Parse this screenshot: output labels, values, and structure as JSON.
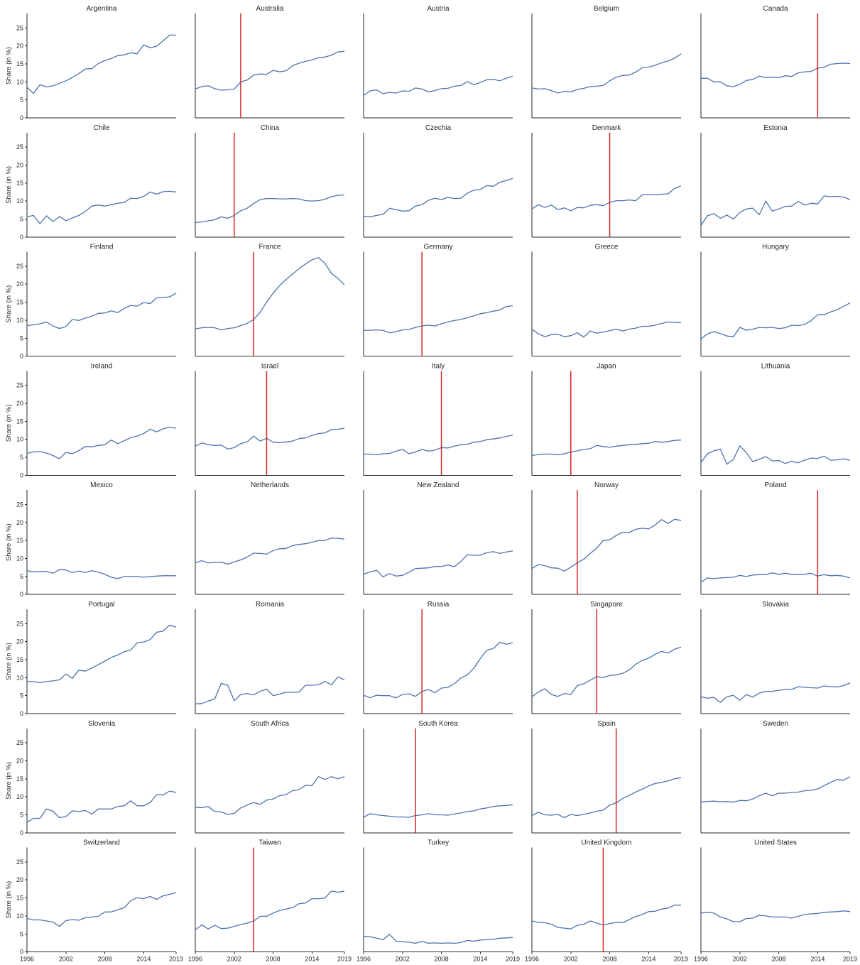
{
  "chart_data": {
    "type": "line",
    "layout": "small-multiples 5x8",
    "ylabel": "Share (in %)",
    "ylim": [
      0,
      29
    ],
    "xlim": [
      1996,
      2019
    ],
    "yticks": [
      0,
      5,
      10,
      15,
      20,
      25
    ],
    "xticks": [
      1996,
      2002,
      2008,
      2014,
      2019
    ],
    "grid": false,
    "line_color": "#4C72B0",
    "marker_color": "#d62728",
    "years": [
      1996,
      1997,
      1998,
      1999,
      2000,
      2001,
      2002,
      2003,
      2004,
      2005,
      2006,
      2007,
      2008,
      2009,
      2010,
      2011,
      2012,
      2013,
      2014,
      2015,
      2016,
      2017,
      2018,
      2019
    ],
    "panels": [
      {
        "country": "Argentina",
        "marker_year": null,
        "values": [
          8.5,
          6.8,
          9.2,
          8.6,
          8.9,
          9.6,
          10.3,
          11.2,
          12.3,
          13.6,
          13.7,
          15.1,
          15.9,
          16.5,
          17.3,
          17.5,
          18.1,
          17.8,
          20.3,
          19.5,
          19.9,
          21.4,
          23.0,
          23.0
        ]
      },
      {
        "country": "Australia",
        "marker_year": 2003,
        "values": [
          8.0,
          8.7,
          8.9,
          8.1,
          7.7,
          7.8,
          8.0,
          10.0,
          10.5,
          11.9,
          12.2,
          12.1,
          13.2,
          12.8,
          13.1,
          14.5,
          15.2,
          15.7,
          16.1,
          16.7,
          16.9,
          17.4,
          18.3,
          18.5
        ]
      },
      {
        "country": "Austria",
        "marker_year": null,
        "values": [
          6.2,
          7.5,
          7.8,
          6.7,
          7.1,
          6.9,
          7.5,
          7.4,
          8.3,
          8.0,
          7.2,
          7.6,
          8.1,
          8.2,
          8.8,
          9.0,
          10.1,
          9.2,
          9.8,
          10.6,
          10.7,
          10.3,
          11.0,
          11.6
        ]
      },
      {
        "country": "Belgium",
        "marker_year": null,
        "values": [
          8.3,
          8.0,
          8.1,
          7.6,
          6.9,
          7.4,
          7.2,
          7.9,
          8.2,
          8.7,
          8.8,
          9.0,
          10.3,
          11.3,
          11.8,
          11.9,
          12.7,
          13.9,
          14.1,
          14.6,
          15.3,
          15.8,
          16.6,
          17.8
        ]
      },
      {
        "country": "Canada",
        "marker_year": 2014,
        "values": [
          11.0,
          11.0,
          10.0,
          10.0,
          8.9,
          8.7,
          9.3,
          10.4,
          10.7,
          11.6,
          11.2,
          11.3,
          11.2,
          11.7,
          11.5,
          12.5,
          12.8,
          12.9,
          13.8,
          14.1,
          14.9,
          15.1,
          15.2,
          15.1
        ]
      },
      {
        "country": "Chile",
        "marker_year": null,
        "values": [
          5.6,
          6.0,
          3.7,
          5.9,
          4.3,
          5.7,
          4.5,
          5.3,
          6.0,
          7.1,
          8.6,
          8.9,
          8.6,
          9.0,
          9.4,
          9.6,
          10.8,
          10.7,
          11.3,
          12.5,
          11.9,
          12.6,
          12.7,
          12.5
        ]
      },
      {
        "country": "China",
        "marker_year": 2002,
        "values": [
          4.0,
          4.2,
          4.5,
          4.8,
          5.6,
          5.2,
          6.0,
          7.3,
          8.0,
          9.3,
          10.4,
          10.7,
          10.7,
          10.6,
          10.6,
          10.7,
          10.6,
          10.1,
          10.0,
          10.1,
          10.5,
          11.2,
          11.6,
          11.7
        ]
      },
      {
        "country": "Czechia",
        "marker_year": null,
        "values": [
          5.8,
          5.6,
          6.0,
          6.3,
          8.0,
          7.6,
          7.2,
          7.3,
          8.6,
          9.0,
          10.2,
          10.8,
          10.4,
          11.0,
          10.7,
          10.8,
          12.2,
          13.0,
          13.2,
          14.3,
          14.1,
          15.2,
          15.7,
          16.3
        ]
      },
      {
        "country": "Denmark",
        "marker_year": 2008,
        "values": [
          7.8,
          9.0,
          8.2,
          8.9,
          7.6,
          8.1,
          7.3,
          8.2,
          8.1,
          8.8,
          9.0,
          8.7,
          9.6,
          10.1,
          10.1,
          10.3,
          10.1,
          11.7,
          11.8,
          11.8,
          11.9,
          12.0,
          13.5,
          14.2
        ]
      },
      {
        "country": "Estonia",
        "marker_year": null,
        "values": [
          3.2,
          5.9,
          6.5,
          5.2,
          6.1,
          5.0,
          6.8,
          7.8,
          8.0,
          6.2,
          10.0,
          7.2,
          7.8,
          8.5,
          8.6,
          9.9,
          8.9,
          9.4,
          9.2,
          11.4,
          11.2,
          11.3,
          11.1,
          10.4
        ]
      },
      {
        "country": "Finland",
        "marker_year": null,
        "values": [
          8.5,
          8.7,
          9.0,
          9.5,
          8.4,
          7.7,
          8.2,
          10.2,
          9.9,
          10.6,
          11.1,
          11.9,
          12.0,
          12.6,
          12.1,
          13.3,
          14.1,
          13.9,
          14.9,
          14.6,
          16.2,
          16.3,
          16.5,
          17.5
        ]
      },
      {
        "country": "France",
        "marker_year": 2005,
        "values": [
          7.6,
          7.9,
          8.0,
          7.9,
          7.3,
          7.7,
          7.9,
          8.5,
          9.1,
          10.2,
          12.2,
          15.0,
          17.5,
          19.6,
          21.3,
          22.8,
          24.3,
          25.6,
          26.8,
          27.4,
          25.8,
          23.0,
          21.6,
          19.8
        ]
      },
      {
        "country": "Germany",
        "marker_year": 2005,
        "values": [
          7.2,
          7.2,
          7.3,
          7.2,
          6.5,
          6.8,
          7.3,
          7.4,
          8.0,
          8.4,
          8.6,
          8.4,
          9.0,
          9.5,
          9.9,
          10.2,
          10.7,
          11.2,
          11.8,
          12.1,
          12.5,
          12.8,
          13.8,
          14.0
        ]
      },
      {
        "country": "Greece",
        "marker_year": null,
        "values": [
          7.5,
          6.2,
          5.4,
          6.0,
          6.1,
          5.4,
          5.7,
          6.5,
          5.3,
          7.0,
          6.4,
          6.7,
          7.1,
          7.5,
          7.0,
          7.5,
          7.8,
          8.3,
          8.3,
          8.6,
          9.1,
          9.5,
          9.4,
          9.3
        ]
      },
      {
        "country": "Hungary",
        "marker_year": null,
        "values": [
          4.8,
          6.2,
          6.8,
          6.3,
          5.6,
          5.4,
          8.0,
          7.2,
          7.5,
          8.0,
          7.9,
          8.0,
          7.7,
          7.9,
          8.6,
          8.5,
          8.8,
          9.9,
          11.5,
          11.5,
          12.3,
          12.9,
          13.8,
          14.8
        ]
      },
      {
        "country": "Ireland",
        "marker_year": null,
        "values": [
          6.1,
          6.5,
          6.6,
          6.2,
          5.5,
          4.6,
          6.4,
          6.0,
          6.9,
          8.0,
          7.9,
          8.3,
          8.5,
          9.8,
          8.8,
          9.6,
          10.5,
          10.9,
          11.6,
          12.8,
          12.1,
          12.9,
          13.4,
          13.1
        ]
      },
      {
        "country": "Israel",
        "marker_year": 2007,
        "values": [
          8.1,
          9.0,
          8.5,
          8.3,
          8.4,
          7.3,
          7.7,
          8.8,
          9.3,
          10.9,
          9.5,
          10.3,
          9.2,
          9.1,
          9.3,
          9.5,
          10.2,
          10.4,
          11.1,
          11.6,
          11.8,
          12.7,
          12.8,
          13.1
        ]
      },
      {
        "country": "Italy",
        "marker_year": 2008,
        "values": [
          5.9,
          5.9,
          5.7,
          6.0,
          6.1,
          6.7,
          7.2,
          6.0,
          6.5,
          7.2,
          6.7,
          7.0,
          7.7,
          7.6,
          8.1,
          8.5,
          8.6,
          9.2,
          9.4,
          9.9,
          10.1,
          10.4,
          10.8,
          11.2
        ]
      },
      {
        "country": "Japan",
        "marker_year": 2002,
        "values": [
          5.5,
          5.8,
          5.9,
          5.9,
          5.7,
          6.0,
          6.5,
          6.8,
          7.2,
          7.4,
          8.3,
          8.0,
          7.8,
          8.1,
          8.3,
          8.5,
          8.6,
          8.8,
          8.9,
          9.4,
          9.2,
          9.4,
          9.7,
          9.8
        ]
      },
      {
        "country": "Lithuania",
        "marker_year": null,
        "values": [
          3.5,
          6.0,
          6.8,
          7.3,
          3.1,
          4.4,
          8.2,
          6.3,
          3.8,
          4.5,
          5.2,
          4.0,
          4.1,
          3.3,
          3.9,
          3.5,
          4.2,
          4.8,
          4.7,
          5.3,
          4.2,
          4.3,
          4.6,
          4.2
        ]
      },
      {
        "country": "Mexico",
        "marker_year": null,
        "values": [
          6.6,
          6.3,
          6.4,
          6.4,
          5.9,
          6.9,
          6.8,
          6.1,
          6.5,
          6.1,
          6.6,
          6.2,
          5.6,
          4.8,
          4.4,
          5.0,
          5.0,
          5.0,
          4.8,
          5.0,
          5.1,
          5.2,
          5.2,
          5.2
        ]
      },
      {
        "country": "Netherlands",
        "marker_year": null,
        "values": [
          8.8,
          9.4,
          8.8,
          8.9,
          9.0,
          8.4,
          9.1,
          9.6,
          10.4,
          11.5,
          11.4,
          11.2,
          12.2,
          12.7,
          12.8,
          13.6,
          13.9,
          14.1,
          14.5,
          15.0,
          15.0,
          15.7,
          15.6,
          15.4
        ]
      },
      {
        "country": "New Zealand",
        "marker_year": null,
        "values": [
          5.6,
          6.3,
          6.7,
          4.9,
          5.8,
          5.1,
          5.3,
          6.2,
          7.2,
          7.3,
          7.4,
          7.8,
          7.8,
          8.2,
          7.7,
          9.2,
          11.0,
          10.9,
          10.9,
          11.6,
          11.9,
          11.4,
          11.8,
          12.1
        ]
      },
      {
        "country": "Norway",
        "marker_year": 2003,
        "values": [
          7.2,
          8.3,
          8.0,
          7.4,
          7.3,
          6.5,
          7.6,
          8.8,
          9.8,
          11.4,
          12.9,
          15.0,
          15.2,
          16.4,
          17.3,
          17.2,
          18.1,
          18.4,
          18.2,
          19.3,
          20.8,
          19.7,
          20.9,
          20.6
        ]
      },
      {
        "country": "Poland",
        "marker_year": 2014,
        "values": [
          3.4,
          4.6,
          4.4,
          4.6,
          4.7,
          4.8,
          5.3,
          5.0,
          5.4,
          5.5,
          5.5,
          6.0,
          5.6,
          5.9,
          5.6,
          5.5,
          5.6,
          5.9,
          5.1,
          5.5,
          5.2,
          5.3,
          5.1,
          4.6
        ]
      },
      {
        "country": "Portugal",
        "marker_year": null,
        "values": [
          8.9,
          8.9,
          8.6,
          8.9,
          9.1,
          9.4,
          11.0,
          9.8,
          12.1,
          11.8,
          12.7,
          13.6,
          14.6,
          15.6,
          16.3,
          17.2,
          17.7,
          19.7,
          19.9,
          20.6,
          22.6,
          22.9,
          24.6,
          24.0
        ]
      },
      {
        "country": "Romania",
        "marker_year": null,
        "values": [
          2.7,
          2.8,
          3.5,
          4.1,
          8.4,
          7.9,
          3.6,
          5.3,
          5.6,
          5.2,
          6.2,
          6.8,
          5.0,
          5.4,
          6.0,
          5.9,
          6.0,
          7.9,
          7.9,
          8.0,
          9.0,
          8.0,
          10.2,
          9.4
        ]
      },
      {
        "country": "Russia",
        "marker_year": 2005,
        "values": [
          5.1,
          4.4,
          5.1,
          5.0,
          5.0,
          4.4,
          5.3,
          5.5,
          4.8,
          6.2,
          6.7,
          5.8,
          7.1,
          7.3,
          8.3,
          9.9,
          10.8,
          12.6,
          15.3,
          17.6,
          18.1,
          19.8,
          19.3,
          19.7
        ]
      },
      {
        "country": "Singapore",
        "marker_year": 2006,
        "values": [
          4.7,
          6.0,
          6.9,
          5.3,
          4.8,
          5.6,
          5.3,
          7.8,
          8.3,
          9.3,
          10.3,
          10.0,
          10.6,
          10.8,
          11.2,
          12.1,
          13.7,
          14.8,
          15.4,
          16.5,
          17.3,
          16.8,
          17.9,
          18.5
        ]
      },
      {
        "country": "Slovakia",
        "marker_year": null,
        "values": [
          4.7,
          4.3,
          4.5,
          3.1,
          4.7,
          5.1,
          3.7,
          5.3,
          4.6,
          5.7,
          6.2,
          6.2,
          6.5,
          6.7,
          6.7,
          7.5,
          7.3,
          7.2,
          7.1,
          7.7,
          7.5,
          7.4,
          7.8,
          8.5
        ]
      },
      {
        "country": "Slovenia",
        "marker_year": null,
        "values": [
          2.9,
          4.0,
          4.0,
          6.6,
          6.0,
          4.2,
          4.5,
          6.1,
          5.9,
          6.2,
          5.2,
          6.6,
          6.6,
          6.6,
          7.3,
          7.5,
          8.9,
          7.5,
          7.5,
          8.4,
          10.6,
          10.5,
          11.6,
          11.2
        ]
      },
      {
        "country": "South Africa",
        "marker_year": null,
        "values": [
          7.1,
          7.0,
          7.3,
          5.9,
          5.8,
          5.1,
          5.4,
          6.9,
          7.7,
          8.4,
          7.9,
          9.1,
          9.4,
          10.3,
          10.6,
          11.7,
          12.0,
          13.2,
          13.1,
          15.6,
          14.8,
          15.6,
          15.0,
          15.6
        ]
      },
      {
        "country": "South Korea",
        "marker_year": 2004,
        "values": [
          4.3,
          5.3,
          5.0,
          4.8,
          4.6,
          4.4,
          4.4,
          4.3,
          4.8,
          5.0,
          5.3,
          5.0,
          5.0,
          4.9,
          5.2,
          5.5,
          5.9,
          6.1,
          6.6,
          6.9,
          7.3,
          7.5,
          7.6,
          7.8
        ]
      },
      {
        "country": "Spain",
        "marker_year": 2009,
        "values": [
          4.8,
          5.7,
          5.0,
          4.9,
          5.1,
          4.2,
          5.1,
          4.8,
          5.1,
          5.5,
          6.0,
          6.3,
          7.7,
          8.3,
          9.5,
          10.4,
          11.3,
          12.1,
          13.0,
          13.7,
          14.0,
          14.4,
          15.0,
          15.3
        ]
      },
      {
        "country": "Sweden",
        "marker_year": null,
        "values": [
          8.6,
          8.7,
          8.8,
          8.6,
          8.7,
          8.5,
          9.0,
          8.9,
          9.4,
          10.3,
          11.0,
          10.3,
          11.0,
          11.0,
          11.2,
          11.3,
          11.7,
          11.8,
          12.2,
          13.1,
          14.0,
          14.8,
          14.6,
          15.6
        ]
      },
      {
        "country": "Switzerland",
        "marker_year": null,
        "values": [
          9.3,
          8.9,
          8.9,
          8.6,
          8.3,
          7.1,
          8.7,
          9.0,
          8.8,
          9.5,
          9.7,
          9.9,
          11.1,
          11.1,
          11.7,
          12.3,
          14.2,
          15.1,
          14.8,
          15.4,
          14.6,
          15.6,
          16.0,
          16.5
        ]
      },
      {
        "country": "Taiwan",
        "marker_year": 2005,
        "values": [
          6.1,
          7.5,
          6.4,
          7.4,
          6.5,
          6.6,
          7.1,
          7.6,
          8.0,
          8.6,
          9.9,
          9.9,
          10.8,
          11.5,
          11.9,
          12.3,
          13.4,
          13.6,
          14.8,
          14.8,
          15.0,
          16.9,
          16.6,
          16.9
        ]
      },
      {
        "country": "Turkey",
        "marker_year": null,
        "values": [
          4.3,
          4.2,
          3.8,
          3.4,
          4.9,
          3.0,
          2.8,
          2.7,
          2.4,
          2.9,
          2.4,
          2.5,
          2.4,
          2.5,
          2.4,
          2.6,
          3.2,
          3.0,
          3.3,
          3.4,
          3.5,
          3.8,
          3.9,
          4.0
        ]
      },
      {
        "country": "United Kingdom",
        "marker_year": 2007,
        "values": [
          8.6,
          8.2,
          8.1,
          7.7,
          6.8,
          6.6,
          6.4,
          7.4,
          7.7,
          8.6,
          8.0,
          7.5,
          7.9,
          8.2,
          8.1,
          9.0,
          9.8,
          10.4,
          11.2,
          11.3,
          11.9,
          12.2,
          13.0,
          13.0
        ]
      },
      {
        "country": "United States",
        "marker_year": null,
        "values": [
          10.8,
          11.0,
          10.8,
          9.7,
          9.2,
          8.4,
          8.4,
          9.3,
          9.4,
          10.2,
          10.0,
          9.7,
          9.7,
          9.7,
          9.4,
          9.9,
          10.4,
          10.6,
          10.7,
          11.0,
          11.1,
          11.2,
          11.4,
          11.2
        ]
      }
    ]
  }
}
